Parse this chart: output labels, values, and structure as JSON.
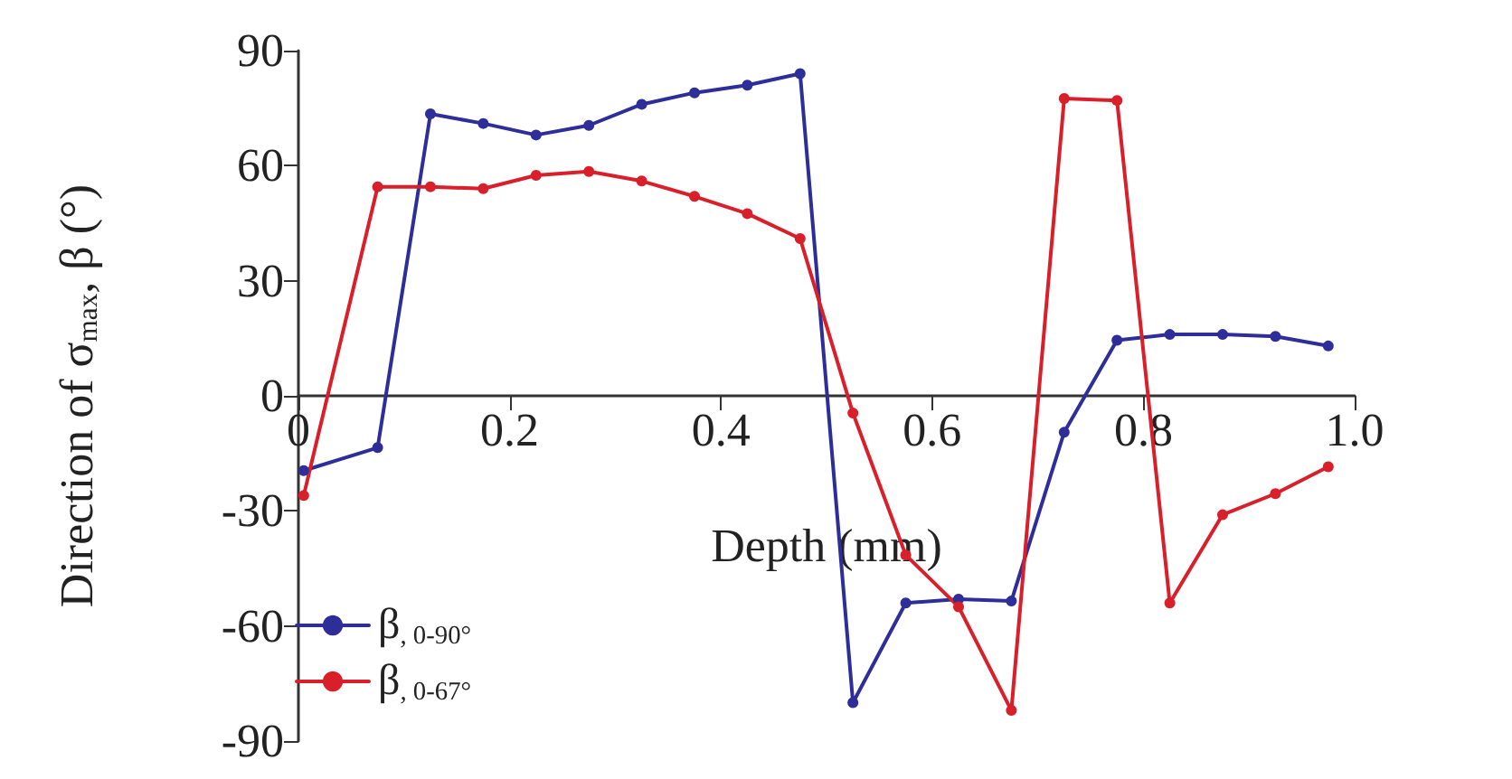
{
  "chart_data": {
    "type": "line",
    "xlabel": "Depth (mm)",
    "ylabel": "Direction of σ$_{max}$, β (°)",
    "xlim": [
      0,
      1
    ],
    "xticks": [
      0,
      0.2,
      0.4,
      0.6,
      0.8,
      {
        "value": 1,
        "label": "1.0"
      }
    ],
    "ylim": [
      -90,
      90
    ],
    "yticks": [
      -90,
      -60,
      -30,
      0,
      30,
      60,
      90
    ],
    "x": [
      0.005,
      0.075,
      0.125,
      0.175,
      0.225,
      0.275,
      0.325,
      0.375,
      0.425,
      0.475,
      0.525,
      0.575,
      0.625,
      0.675,
      0.725,
      0.775,
      0.825,
      0.875,
      0.925,
      0.975
    ],
    "series": [
      {
        "name": "β$_{, 0-90°}$",
        "color": "#2e2e9a",
        "values": [
          -19.5,
          -13.5,
          73.5,
          71,
          68,
          70.5,
          76,
          79,
          81,
          84,
          -80,
          -54,
          -53,
          -53.5,
          -9.5,
          14.5,
          16,
          16,
          15.5,
          13
        ]
      },
      {
        "name": "β$_{, 0-67°}$",
        "color": "#d81f2a",
        "values": [
          -26,
          54.5,
          54.5,
          54,
          57.5,
          58.5,
          56,
          52,
          47.5,
          41,
          -4.5,
          -41.5,
          -55,
          -82,
          77.5,
          77,
          -54,
          -31,
          -25.5,
          -18.5
        ]
      }
    ],
    "marker": "circle",
    "line_style": "solid",
    "grid": false,
    "legend": "bottom left"
  }
}
